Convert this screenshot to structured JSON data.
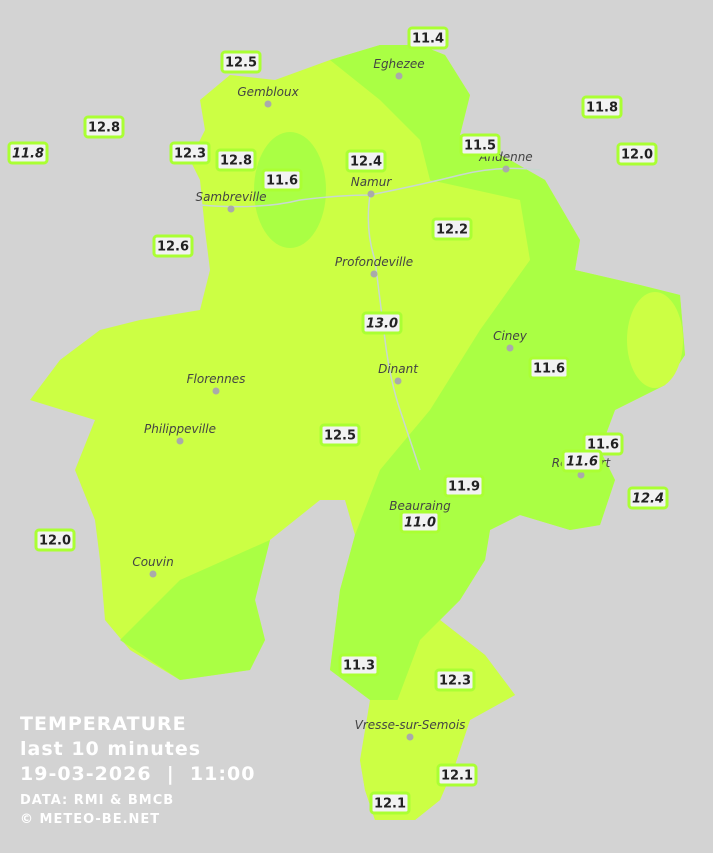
{
  "cities": [
    "Eghezee",
    "Gembloux",
    "Andenne",
    "Namur",
    "Sambreville",
    "Profondeville",
    "Ciney",
    "Dinant",
    "Florennes",
    "Philippeville",
    "Rochefort",
    "Beauraing",
    "Couvin",
    "Vresse-sur-Semois"
  ],
  "stations": [
    "12.5",
    "11.4",
    "12.8",
    "11.8",
    "11.8",
    "12.3",
    "12.8",
    "12.4",
    "11.5",
    "12.0",
    "11.6",
    "12.6",
    "12.2",
    "13.0",
    "11.6",
    "12.5",
    "11.6",
    "11.6",
    "12.4",
    "11.9",
    "11.0",
    "12.0",
    "11.3",
    "12.3",
    "12.1",
    "12.1"
  ],
  "legend": {
    "title": "TEMPERATURE",
    "period": "last 10 minutes",
    "datetime": "19-03-2026  |  11:00",
    "source": "DATA: RMI & BMCB",
    "copyright": "© METEO-BE.NET"
  }
}
